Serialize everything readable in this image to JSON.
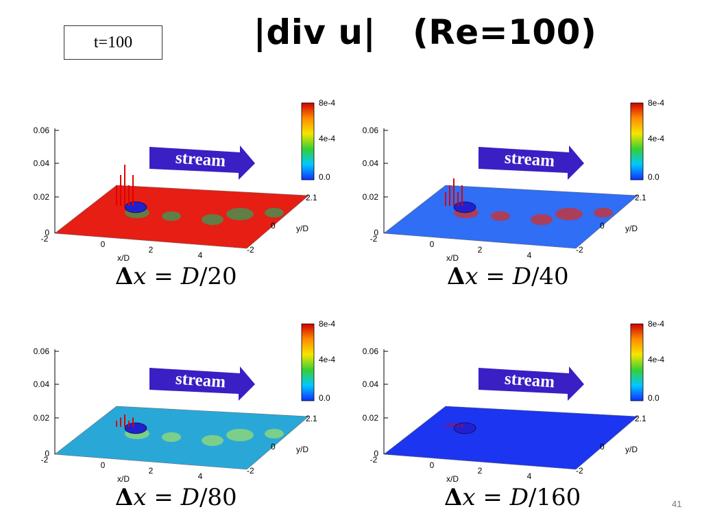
{
  "time_label": "t=100",
  "title": "|div u|   (Re=100)",
  "page_number": "41",
  "arrow_label": "stream",
  "colorbar": {
    "ticks": [
      "8e-4",
      "4e-4",
      "0.0"
    ],
    "colors": [
      "#d00000",
      "#ff8c00",
      "#f5e600",
      "#35d035",
      "#00c8ff",
      "#1030ff"
    ]
  },
  "axes": {
    "z_ticks": [
      "0.06",
      "0.04",
      "0.02",
      "0"
    ],
    "x_ticks": [
      "-2",
      "0",
      "2",
      "4"
    ],
    "y_ticks": [
      "2.1",
      "0",
      "-2"
    ],
    "x_label": "x/D",
    "y_label": "y/D"
  },
  "panels": [
    {
      "caption_prefix": "Δ",
      "caption_var": "x",
      "caption_eq": " = ",
      "caption_D": "D",
      "caption_den": "/20",
      "surface_color": "#e61e14"
    },
    {
      "caption_prefix": "Δ",
      "caption_var": "x",
      "caption_eq": " = ",
      "caption_D": "D",
      "caption_den": "/40",
      "surface_color": "#2f6ef5"
    },
    {
      "caption_prefix": "Δ",
      "caption_var": "x",
      "caption_eq": " = ",
      "caption_D": "D",
      "caption_den": "/80",
      "surface_color": "#29a8d8"
    },
    {
      "caption_prefix": "Δ",
      "caption_var": "x",
      "caption_eq": " = ",
      "caption_D": "D",
      "caption_den": "/160",
      "surface_color": "#1c35f0"
    }
  ]
}
